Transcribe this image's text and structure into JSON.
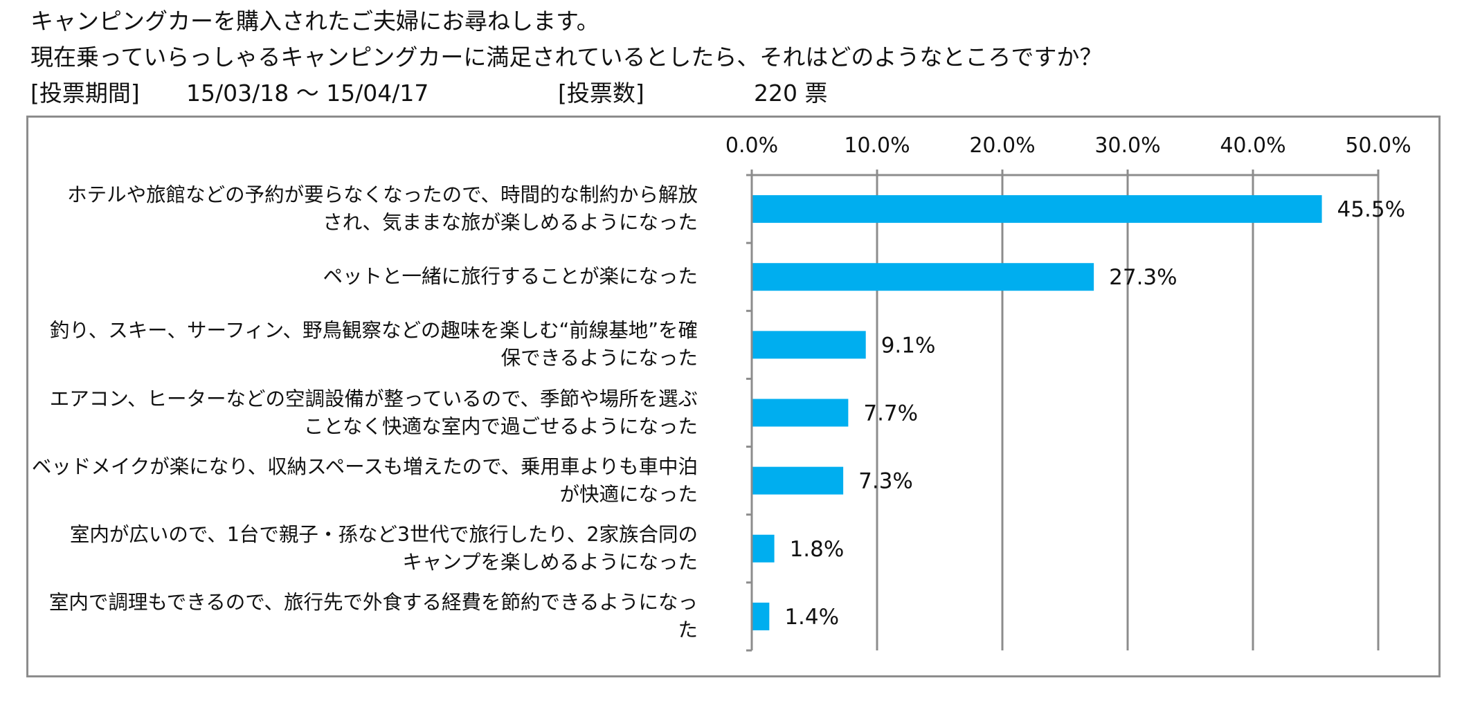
{
  "header": {
    "line1": "キャンピングカーを購入されたご夫婦にお尋ねします。",
    "line2": "現在乗っていらっしゃるキャンピングカーに満足されているとしたら、それはどのようなところですか？",
    "period_label": "[投票期間]",
    "period_value": "15/03/18 〜 15/04/17",
    "votes_label": "[投票数]",
    "votes_value": "220 票"
  },
  "chart_data": {
    "type": "bar",
    "orientation": "horizontal",
    "categories": [
      [
        "ホテルや旅館などの予約が要らなくなったので、時間的な制約から解放",
        "され、気ままな旅が楽しめるようになった"
      ],
      [
        "ペットと一緒に旅行することが楽になった"
      ],
      [
        "釣り、スキー、サーフィン、野鳥観察などの趣味を楽しむ“前線基地”を確",
        "保できるようになった"
      ],
      [
        "エアコン、ヒーターなどの空調設備が整っているので、季節や場所を選ぶ",
        "ことなく快適な室内で過ごせるようになった"
      ],
      [
        "ベッドメイクが楽になり、収納スペースも増えたので、乗用車よりも車中泊",
        "が快適になった"
      ],
      [
        "室内が広いので、1台で親子・孫など3世代で旅行したり、2家族合同の",
        "キャンプを楽しめるようになった"
      ],
      [
        "室内で調理もできるので、旅行先で外食する経費を節約できるようになっ",
        "た"
      ]
    ],
    "values": [
      45.5,
      27.3,
      9.1,
      7.7,
      7.3,
      1.8,
      1.4
    ],
    "value_labels": [
      "45.5%",
      "27.3%",
      "9.1%",
      "7.7%",
      "7.3%",
      "1.8%",
      "1.4%"
    ],
    "xlim": [
      0,
      50
    ],
    "ticks": [
      0,
      10,
      20,
      30,
      40,
      50
    ],
    "tick_labels": [
      "0.0%",
      "10.0%",
      "20.0%",
      "30.0%",
      "40.0%",
      "50.0%"
    ],
    "axis_position": "top",
    "grid": true,
    "bar_color": "#00aeef",
    "grid_color": "#8c8c8c"
  }
}
